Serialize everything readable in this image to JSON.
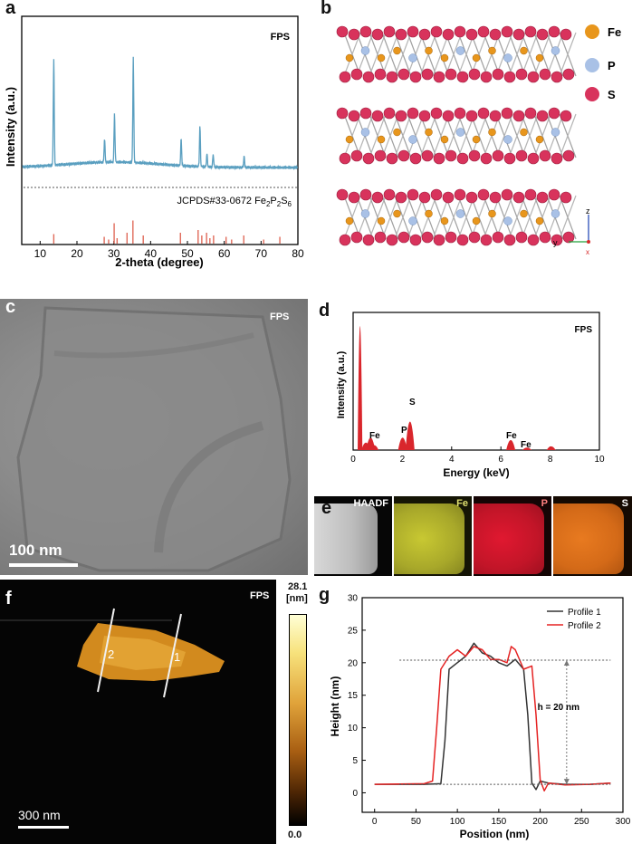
{
  "panels": {
    "a": {
      "label": "a",
      "tag": "FPS",
      "ylabel": "Intensity (a.u.)",
      "xlabel": "2-theta (degree)",
      "ref_label_prefix": "JCPDS#33-0672 Fe",
      "ref_formula_parts": [
        "2",
        "P",
        "2",
        "S",
        "6"
      ]
    },
    "b": {
      "label": "b",
      "legend": [
        {
          "symbol": "Fe",
          "color": "#e8961c"
        },
        {
          "symbol": "P",
          "color": "#a9c1e6"
        },
        {
          "symbol": "S",
          "color": "#d8335c"
        }
      ],
      "axes": {
        "z": "z",
        "y": "y",
        "x": "x"
      }
    },
    "c": {
      "label": "c",
      "tag": "FPS",
      "scale": "100 nm"
    },
    "d": {
      "label": "d",
      "tag": "FPS",
      "ylabel": "Intensity (a.u.)",
      "xlabel": "Energy (keV)",
      "peak_labels": [
        "Fe",
        "P",
        "S",
        "Fe",
        "Fe"
      ]
    },
    "e": {
      "label": "e",
      "maps": [
        "HAADF",
        "Fe",
        "P",
        "S"
      ]
    },
    "f": {
      "label": "f",
      "tag": "FPS",
      "scale": "300 nm",
      "colorbar_max": "28.1",
      "colorbar_unit": "[nm]",
      "colorbar_min": "0.0",
      "line_labels": [
        "2",
        "1"
      ]
    },
    "g": {
      "label": "g",
      "ylabel": "Height (nm)",
      "xlabel": "Position (nm)",
      "annotation": "h = 20 nm",
      "legend": [
        "Profile 1",
        "Profile 2"
      ]
    }
  },
  "chart_data": [
    {
      "id": "a",
      "type": "line",
      "title": "FPS",
      "xlabel": "2-theta (degree)",
      "ylabel": "Intensity (a.u.)",
      "xlim": [
        5,
        80
      ],
      "xticks": [
        10,
        20,
        30,
        40,
        50,
        60,
        70,
        80
      ],
      "series": [
        {
          "name": "",
          "color": "#5a9fc0",
          "peaks": [
            [
              13.7,
              1.0
            ],
            [
              27.5,
              0.22
            ],
            [
              30.2,
              0.45
            ],
            [
              35.3,
              0.98
            ],
            [
              48.3,
              0.25
            ],
            [
              53.4,
              0.37
            ],
            [
              55.3,
              0.12
            ],
            [
              57.0,
              0.12
            ],
            [
              65.4,
              0.1
            ]
          ]
        }
      ],
      "reference": {
        "name": "JCPDS#33-0672 Fe2P2S6",
        "color": "#e06a5a",
        "lines": [
          [
            13.7,
            0.35
          ],
          [
            27.4,
            0.25
          ],
          [
            28.6,
            0.15
          ],
          [
            30.1,
            0.75
          ],
          [
            30.9,
            0.2
          ],
          [
            33.6,
            0.4
          ],
          [
            35.2,
            0.85
          ],
          [
            38.0,
            0.3
          ],
          [
            48.1,
            0.4
          ],
          [
            52.9,
            0.5
          ],
          [
            53.9,
            0.3
          ],
          [
            55.2,
            0.4
          ],
          [
            56.1,
            0.2
          ],
          [
            57.1,
            0.3
          ],
          [
            60.5,
            0.25
          ],
          [
            62.0,
            0.15
          ],
          [
            65.3,
            0.3
          ],
          [
            70.7,
            0.15
          ],
          [
            75.1,
            0.25
          ]
        ]
      }
    },
    {
      "id": "d",
      "type": "bar",
      "title": "FPS",
      "xlabel": "Energy (keV)",
      "ylabel": "Intensity (a.u.)",
      "xlim": [
        0,
        10
      ],
      "xticks": [
        0,
        2,
        4,
        6,
        8,
        10
      ],
      "color": "#d9262c",
      "peaks": [
        [
          0.28,
          1.0
        ],
        [
          0.52,
          0.06
        ],
        [
          0.71,
          0.1
        ],
        [
          0.85,
          0.04
        ],
        [
          2.01,
          0.1
        ],
        [
          2.31,
          0.23
        ],
        [
          6.4,
          0.08
        ],
        [
          7.06,
          0.02
        ],
        [
          8.04,
          0.03
        ]
      ]
    },
    {
      "id": "g",
      "type": "line",
      "xlabel": "Position (nm)",
      "ylabel": "Height (nm)",
      "xlim": [
        -15,
        300
      ],
      "ylim": [
        -3,
        30
      ],
      "xticks": [
        0,
        50,
        100,
        150,
        200,
        250,
        300
      ],
      "yticks": [
        0,
        5,
        10,
        15,
        20,
        25,
        30
      ],
      "series": [
        {
          "name": "Profile 1",
          "color": "#333333",
          "x": [
            0,
            60,
            80,
            85,
            90,
            100,
            110,
            120,
            130,
            140,
            150,
            160,
            170,
            180,
            185,
            190,
            195,
            200,
            210,
            230,
            260,
            285
          ],
          "y": [
            1.3,
            1.3,
            1.4,
            8,
            19,
            20,
            21,
            23,
            21.5,
            21,
            20,
            19.5,
            20.5,
            19,
            12,
            1.5,
            0.5,
            1.8,
            1.5,
            1.3,
            1.3,
            1.5
          ]
        },
        {
          "name": "Profile 2",
          "color": "#e52323",
          "x": [
            0,
            60,
            70,
            75,
            80,
            90,
            100,
            110,
            120,
            130,
            140,
            150,
            160,
            165,
            170,
            180,
            190,
            195,
            200,
            205,
            210,
            230,
            260,
            285
          ],
          "y": [
            1.3,
            1.4,
            1.8,
            10,
            19,
            21,
            22,
            21,
            22.5,
            22,
            20.5,
            20.5,
            20,
            22.5,
            22,
            19,
            19.5,
            12,
            2,
            0.3,
            1.5,
            1.2,
            1.3,
            1.5
          ]
        }
      ],
      "annotation": "h = 20 nm",
      "reference_levels": [
        20.4,
        1.3
      ]
    }
  ]
}
